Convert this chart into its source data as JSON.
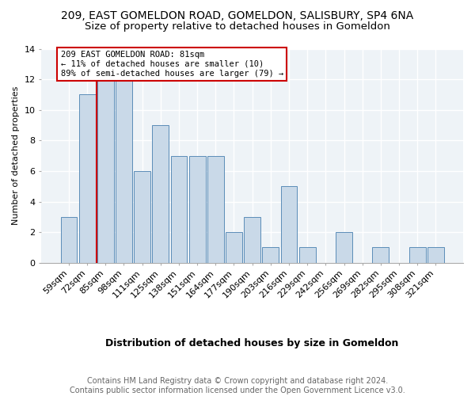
{
  "title1": "209, EAST GOMELDON ROAD, GOMELDON, SALISBURY, SP4 6NA",
  "title2": "Size of property relative to detached houses in Gomeldon",
  "xlabel": "Distribution of detached houses by size in Gomeldon",
  "ylabel": "Number of detached properties",
  "categories": [
    "59sqm",
    "72sqm",
    "85sqm",
    "98sqm",
    "111sqm",
    "125sqm",
    "138sqm",
    "151sqm",
    "164sqm",
    "177sqm",
    "190sqm",
    "203sqm",
    "216sqm",
    "229sqm",
    "242sqm",
    "256sqm",
    "269sqm",
    "282sqm",
    "295sqm",
    "308sqm",
    "321sqm"
  ],
  "values": [
    3,
    11,
    12,
    12,
    6,
    9,
    7,
    7,
    7,
    2,
    3,
    1,
    5,
    1,
    0,
    2,
    0,
    1,
    0,
    1,
    1
  ],
  "bar_color": "#c9d9e8",
  "bar_edge_color": "#5b8db8",
  "vline_color": "#cc0000",
  "annotation_text": "209 EAST GOMELDON ROAD: 81sqm\n← 11% of detached houses are smaller (10)\n89% of semi-detached houses are larger (79) →",
  "annotation_box_color": "#ffffff",
  "annotation_box_edge": "#cc0000",
  "ylim": [
    0,
    14
  ],
  "yticks": [
    0,
    2,
    4,
    6,
    8,
    10,
    12,
    14
  ],
  "footer": "Contains HM Land Registry data © Crown copyright and database right 2024.\nContains public sector information licensed under the Open Government Licence v3.0.",
  "plot_bg_color": "#eef3f7",
  "grid_color": "#ffffff",
  "title1_fontsize": 10,
  "title2_fontsize": 9.5,
  "xlabel_fontsize": 9,
  "ylabel_fontsize": 8,
  "footer_fontsize": 7,
  "tick_fontsize": 8,
  "annot_fontsize": 7.5
}
